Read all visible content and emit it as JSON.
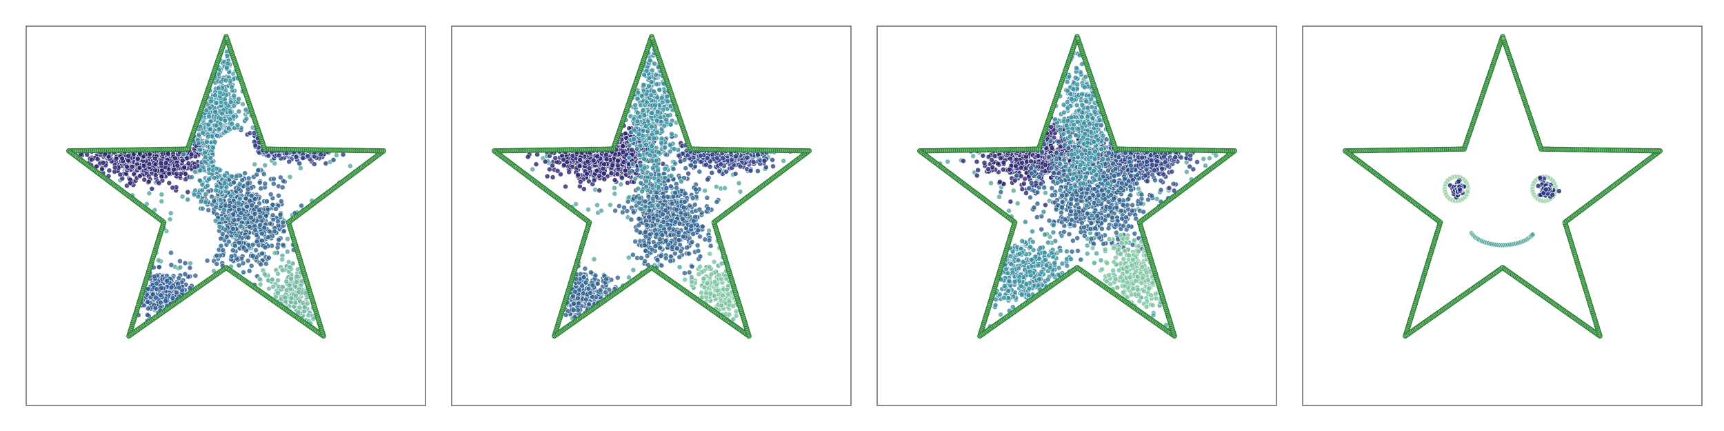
{
  "chart_data": [
    {
      "type": "scatter",
      "title": "",
      "grid": false,
      "axes_visible": false,
      "colormap": [
        "#1f1a5e",
        "#2b4e8c",
        "#2f7f99",
        "#4aa29a",
        "#7cc4a0"
      ],
      "outline_color": "#2e7d3a",
      "outline_fill": "#6fbf73",
      "outline": "five-point-star",
      "clusters": [
        {
          "cx": -0.45,
          "cy": 0.3,
          "sx": 0.16,
          "sy": 0.08,
          "n": 650,
          "color": "#2b2470"
        },
        {
          "cx": 0.42,
          "cy": 0.37,
          "sx": 0.11,
          "sy": 0.04,
          "n": 350,
          "color": "#2d3f85"
        },
        {
          "cx": 0.1,
          "cy": -0.1,
          "sx": 0.12,
          "sy": 0.14,
          "n": 600,
          "color": "#2f6390"
        },
        {
          "cx": -0.05,
          "cy": 0.45,
          "sx": 0.07,
          "sy": 0.22,
          "n": 450,
          "color": "#3a8ea0"
        },
        {
          "cx": -0.4,
          "cy": -0.55,
          "sx": 0.09,
          "sy": 0.07,
          "n": 300,
          "color": "#2c5a92"
        },
        {
          "cx": 0.4,
          "cy": -0.55,
          "sx": 0.08,
          "sy": 0.1,
          "n": 180,
          "color": "#6fb6a0"
        }
      ],
      "holes": [
        [
          0.05,
          0.3,
          0.13
        ],
        [
          -0.2,
          -0.2,
          0.16
        ]
      ]
    },
    {
      "type": "scatter",
      "title": "",
      "grid": false,
      "axes_visible": false,
      "colormap": [
        "#1f1a5e",
        "#2b4e8c",
        "#2f7f99",
        "#4aa29a",
        "#7cc4a0"
      ],
      "outline_color": "#2e7d3a",
      "outline_fill": "#6fbf73",
      "outline": "five-point-star",
      "clusters": [
        {
          "cx": -0.3,
          "cy": 0.3,
          "sx": 0.15,
          "sy": 0.08,
          "n": 650,
          "color": "#2b2470"
        },
        {
          "cx": 0.45,
          "cy": 0.3,
          "sx": 0.12,
          "sy": 0.05,
          "n": 350,
          "color": "#2d3f85"
        },
        {
          "cx": 0.1,
          "cy": -0.1,
          "sx": 0.12,
          "sy": 0.13,
          "n": 600,
          "color": "#2f6390"
        },
        {
          "cx": 0.0,
          "cy": 0.5,
          "sx": 0.07,
          "sy": 0.22,
          "n": 450,
          "color": "#3a8ea0"
        },
        {
          "cx": -0.4,
          "cy": -0.58,
          "sx": 0.1,
          "sy": 0.07,
          "n": 300,
          "color": "#2f6390"
        },
        {
          "cx": 0.4,
          "cy": -0.55,
          "sx": 0.08,
          "sy": 0.1,
          "n": 180,
          "color": "#7cc4a0"
        }
      ],
      "holes": [
        [
          -0.25,
          -0.2,
          0.15
        ]
      ]
    },
    {
      "type": "scatter",
      "title": "",
      "grid": false,
      "axes_visible": false,
      "colormap": [
        "#1f1a5e",
        "#2b4e8c",
        "#2f7f99",
        "#4aa29a",
        "#7cc4a0"
      ],
      "outline_color": "#2e7d3a",
      "outline_fill": "#6fbf73",
      "outline": "five-point-star",
      "clusters": [
        {
          "cx": -0.25,
          "cy": 0.3,
          "sx": 0.14,
          "sy": 0.08,
          "n": 650,
          "color": "#2b2470"
        },
        {
          "cx": 0.38,
          "cy": 0.28,
          "sx": 0.13,
          "sy": 0.07,
          "n": 400,
          "color": "#2d3f85"
        },
        {
          "cx": 0.1,
          "cy": 0.05,
          "sx": 0.16,
          "sy": 0.15,
          "n": 700,
          "color": "#2f6390"
        },
        {
          "cx": 0.05,
          "cy": 0.5,
          "sx": 0.08,
          "sy": 0.2,
          "n": 400,
          "color": "#3a8ea0"
        },
        {
          "cx": -0.3,
          "cy": -0.45,
          "sx": 0.14,
          "sy": 0.12,
          "n": 350,
          "color": "#3a8ea0"
        },
        {
          "cx": 0.35,
          "cy": -0.45,
          "sx": 0.1,
          "sy": 0.12,
          "n": 250,
          "color": "#7cc4a0"
        }
      ],
      "holes": []
    },
    {
      "type": "scatter",
      "title": "",
      "grid": false,
      "axes_visible": false,
      "colormap": [
        "#1f1a5e",
        "#2b4e8c",
        "#2f7f99",
        "#4aa29a",
        "#7cc4a0"
      ],
      "outline_color": "#2e7d3a",
      "outline_fill": "#6fbf73",
      "outline": "five-point-star",
      "face": {
        "left_eye": {
          "x": -0.28,
          "y": 0.08,
          "r": 0.07
        },
        "right_eye": {
          "x": 0.25,
          "y": 0.08,
          "r": 0.07
        },
        "smile": {
          "x": 0.0,
          "y": -0.15,
          "r": 0.2,
          "from_deg": 200,
          "to_deg": 335
        },
        "eye_color": "#26347a",
        "ring_color": "#9fd2a8",
        "smile_color": "#4fa49a"
      },
      "clusters": [],
      "holes": []
    }
  ]
}
